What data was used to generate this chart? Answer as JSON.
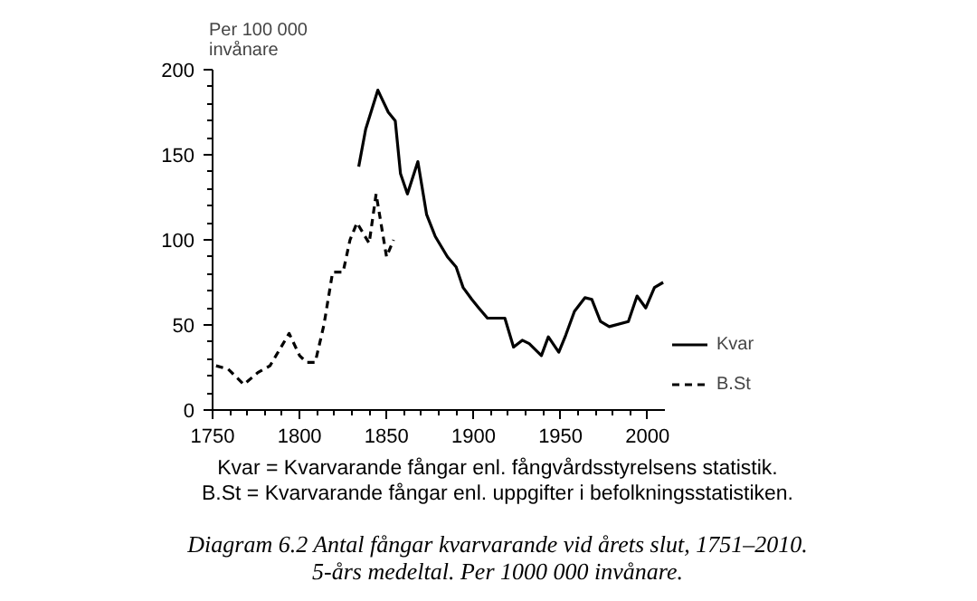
{
  "chart_data": {
    "type": "line",
    "ylabel": "Per 100 000\ninvånare",
    "xlim": [
      1750,
      2010
    ],
    "xticks": [
      1750,
      1800,
      1850,
      1900,
      1950,
      2000
    ],
    "ylim": [
      0,
      200
    ],
    "yticks": [
      0,
      50,
      100,
      150,
      200
    ],
    "grid": false,
    "legend": "bottom right",
    "marker": "none",
    "series": [
      {
        "name": "Kvar",
        "color": "#000000",
        "line_style": "solid",
        "x": [
          1834,
          1838,
          1845,
          1851,
          1855,
          1858,
          1862,
          1868,
          1873,
          1878,
          1885,
          1890,
          1894,
          1899,
          1903,
          1908,
          1918,
          1923,
          1928,
          1932,
          1939,
          1943,
          1949,
          1953,
          1958,
          1964,
          1968,
          1973,
          1978,
          1989,
          1994,
          1999,
          2004,
          2009
        ],
        "values": [
          143,
          165,
          188,
          175,
          170,
          139,
          127,
          146,
          115,
          102,
          90,
          84,
          72,
          65,
          60,
          54,
          54,
          37,
          41,
          39,
          32,
          43,
          34,
          44,
          58,
          66,
          65,
          52,
          49,
          52,
          67,
          60,
          72,
          75
        ]
      },
      {
        "name": "B.St",
        "color": "#000000",
        "line_style": "dashed",
        "x": [
          1752,
          1759,
          1768,
          1776,
          1783,
          1794,
          1800,
          1804,
          1809,
          1814,
          1819,
          1825,
          1829,
          1833,
          1840,
          1844,
          1850,
          1854
        ],
        "values": [
          26,
          24,
          15,
          22,
          26,
          45,
          32,
          28,
          28,
          50,
          81,
          81,
          100,
          110,
          98,
          127,
          90,
          100
        ]
      }
    ],
    "annotations": [
      "Kvar = Kvarvarande fångar enl. fångvårdsstyrelsens statistik.",
      "B.St = Kvarvarande fångar enl. uppgifter i befolkningsstatistiken.",
      "Diagram 6.2   Antal fångar kvarvarande vid årets slut, 1751–2010.",
      "5-års medeltal. Per 1000 000 invånare."
    ]
  }
}
